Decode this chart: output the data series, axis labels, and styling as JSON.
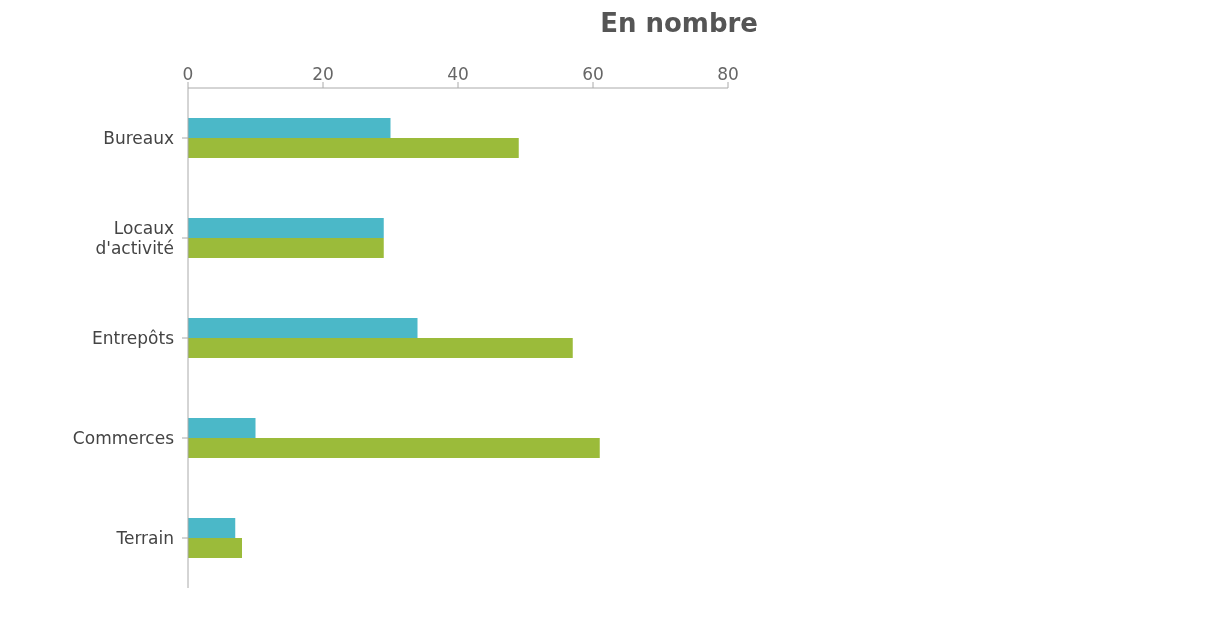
{
  "chart_data": {
    "type": "bar",
    "orientation": "horizontal",
    "title": "En nombre",
    "categories": [
      "Bureaux",
      "Locaux d'activité",
      "Entrepôts",
      "Commerces",
      "Terrain"
    ],
    "series": [
      {
        "color": "#4bb8c8",
        "values": [
          30,
          29,
          34,
          10,
          7
        ]
      },
      {
        "color": "#9bbb3a",
        "values": [
          49,
          29,
          57,
          61,
          8
        ]
      }
    ],
    "xlim": [
      0,
      80
    ],
    "xticks": [
      0,
      20,
      40,
      60,
      80
    ],
    "grid": false,
    "legend": false
  }
}
